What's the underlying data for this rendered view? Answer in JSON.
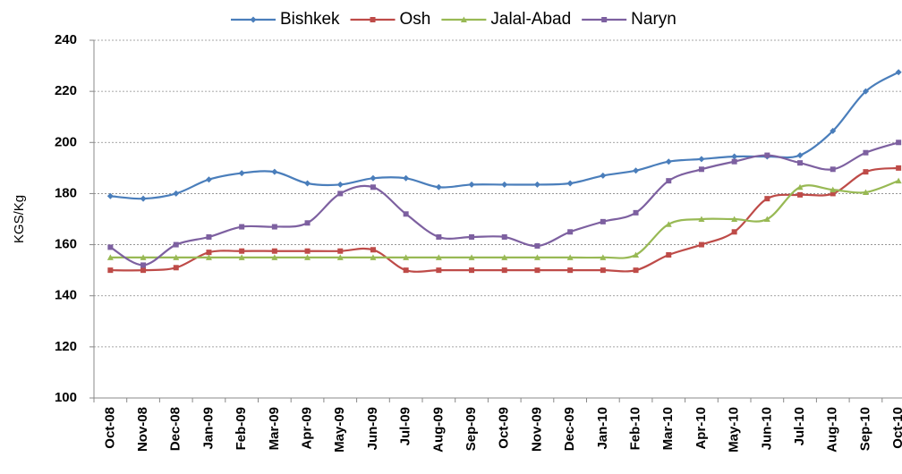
{
  "chart_data": {
    "type": "line",
    "y_label": "KGS/Kg",
    "categories": [
      "Oct-08",
      "Nov-08",
      "Dec-08",
      "Jan-09",
      "Feb-09",
      "Mar-09",
      "Apr-09",
      "May-09",
      "Jun-09",
      "Jul-09",
      "Aug-09",
      "Sep-09",
      "Oct-09",
      "Nov-09",
      "Dec-09",
      "Jan-10",
      "Feb-10",
      "Mar-10",
      "Apr-10",
      "May-10",
      "Jun-10",
      "Jul-10",
      "Aug-10",
      "Sep-10",
      "Oct-10"
    ],
    "series": [
      {
        "name": "Bishkek",
        "color": "#4a7ebb",
        "marker": "diamond",
        "values": [
          179,
          178,
          180,
          185.5,
          188,
          188.5,
          184,
          183.5,
          186,
          186,
          182.5,
          183.5,
          183.5,
          183.5,
          184,
          187,
          189,
          192.5,
          193.5,
          194.5,
          194.5,
          195,
          204.5,
          220,
          227.5
        ]
      },
      {
        "name": "Osh",
        "color": "#be4b48",
        "marker": "square",
        "values": [
          150,
          150,
          151,
          157,
          157.5,
          157.5,
          157.5,
          157.5,
          158,
          150,
          150,
          150,
          150,
          150,
          150,
          150,
          150,
          156,
          160,
          165,
          178,
          179.5,
          180,
          188.5,
          190
        ]
      },
      {
        "name": "Jalal-Abad",
        "color": "#98b954",
        "marker": "triangle",
        "values": [
          155,
          155,
          155,
          155,
          155,
          155,
          155,
          155,
          155,
          155,
          155,
          155,
          155,
          155,
          155,
          155,
          156,
          168,
          170,
          170,
          170,
          182.5,
          181.5,
          180.5,
          185
        ]
      },
      {
        "name": "Naryn",
        "color": "#7d60a0",
        "marker": "square",
        "values": [
          159,
          152,
          160,
          163,
          167,
          167,
          168.5,
          180,
          182.5,
          172,
          163,
          163,
          163,
          159.5,
          165,
          169,
          172.5,
          185,
          189.5,
          192.5,
          195,
          192,
          189.5,
          196,
          200
        ]
      }
    ],
    "ylim": [
      100,
      240
    ],
    "yticks": [
      100,
      120,
      140,
      160,
      180,
      200,
      220,
      240
    ],
    "grid": true,
    "legend": "top"
  }
}
